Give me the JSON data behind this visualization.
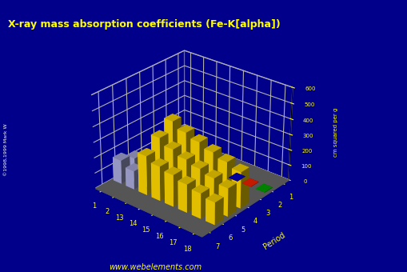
{
  "title": "X-ray mass absorption coefficients (Fe-K[alpha])",
  "background_color": "#00008B",
  "floor_color": "#606060",
  "title_color": "#FFFF00",
  "axis_color": "#FFFF00",
  "tick_color": "#FFFF00",
  "grid_color": "#FFFFFF",
  "zlim": [
    0,
    600
  ],
  "zticks": [
    0,
    100,
    200,
    300,
    400,
    500,
    600
  ],
  "groups": [
    1,
    2,
    13,
    14,
    15,
    16,
    17,
    18
  ],
  "periods": [
    1,
    2,
    3,
    4,
    5,
    6,
    7
  ],
  "watermark": "www.webelements.com",
  "copyright": "©1998,1999 Mark W",
  "elev": 28,
  "azim": -50,
  "bar_data": [
    {
      "g": 1,
      "p": 1,
      "v": 0.4,
      "c": "#FFB6C1"
    },
    {
      "g": 1,
      "p": 2,
      "v": 38.0,
      "c": "#AAAADD"
    },
    {
      "g": 1,
      "p": 3,
      "v": 57.0,
      "c": "#AAAADD"
    },
    {
      "g": 1,
      "p": 4,
      "v": 87.0,
      "c": "#AAAADD"
    },
    {
      "g": 1,
      "p": 5,
      "v": 120.0,
      "c": "#AAAADD"
    },
    {
      "g": 1,
      "p": 6,
      "v": 154.0,
      "c": "#AAAADD"
    },
    {
      "g": 2,
      "p": 3,
      "v": 14.0,
      "c": "#AAAADD"
    },
    {
      "g": 2,
      "p": 4,
      "v": 37.0,
      "c": "#AAAADD"
    },
    {
      "g": 2,
      "p": 5,
      "v": 70.0,
      "c": "#AAAADD"
    },
    {
      "g": 2,
      "p": 6,
      "v": 120.0,
      "c": "#AAAADD"
    },
    {
      "g": 13,
      "p": 2,
      "v": 74.0,
      "c": "#8B0000"
    },
    {
      "g": 13,
      "p": 3,
      "v": 48.5,
      "c": "#FFD700"
    },
    {
      "g": 13,
      "p": 4,
      "v": 385.0,
      "c": "#FFD700"
    },
    {
      "g": 13,
      "p": 5,
      "v": 324.0,
      "c": "#FFD700"
    },
    {
      "g": 13,
      "p": 6,
      "v": 254.0,
      "c": "#FFD700"
    },
    {
      "g": 14,
      "p": 2,
      "v": 66.0,
      "c": "#888888"
    },
    {
      "g": 14,
      "p": 3,
      "v": 60.6,
      "c": "#FFD700"
    },
    {
      "g": 14,
      "p": 4,
      "v": 346.0,
      "c": "#FFD700"
    },
    {
      "g": 14,
      "p": 5,
      "v": 285.0,
      "c": "#FFD700"
    },
    {
      "g": 14,
      "p": 6,
      "v": 223.0,
      "c": "#FFD700"
    },
    {
      "g": 15,
      "p": 2,
      "v": 55.0,
      "c": "#FF44FF"
    },
    {
      "g": 15,
      "p": 3,
      "v": 80.0,
      "c": "#660066"
    },
    {
      "g": 15,
      "p": 4,
      "v": 319.0,
      "c": "#FFD700"
    },
    {
      "g": 15,
      "p": 5,
      "v": 255.0,
      "c": "#FFD700"
    },
    {
      "g": 15,
      "p": 6,
      "v": 205.0,
      "c": "#FFD700"
    },
    {
      "g": 16,
      "p": 3,
      "v": 89.1,
      "c": "#FFD700"
    },
    {
      "g": 16,
      "p": 4,
      "v": 289.0,
      "c": "#FFD700"
    },
    {
      "g": 16,
      "p": 5,
      "v": 232.0,
      "c": "#FFD700"
    },
    {
      "g": 16,
      "p": 6,
      "v": 182.0,
      "c": "#FFD700"
    },
    {
      "g": 17,
      "p": 3,
      "v": 106.0,
      "c": "#FFD700"
    },
    {
      "g": 17,
      "p": 4,
      "v": 262.0,
      "c": "#FFD700"
    },
    {
      "g": 17,
      "p": 5,
      "v": 208.0,
      "c": "#FFD700"
    },
    {
      "g": 17,
      "p": 6,
      "v": 163.0,
      "c": "#FFD700"
    },
    {
      "g": 18,
      "p": 4,
      "v": 234.0,
      "c": "#FFD700"
    },
    {
      "g": 18,
      "p": 5,
      "v": 182.0,
      "c": "#FFD700"
    },
    {
      "g": 18,
      "p": 6,
      "v": 144.0,
      "c": "#FFD700"
    },
    {
      "g": 18,
      "p": 2,
      "v": 2.0,
      "c": "#00AA00"
    },
    {
      "g": 17,
      "p": 2,
      "v": 2.0,
      "c": "#FF2200"
    },
    {
      "g": 16,
      "p": 2,
      "v": 2.0,
      "c": "#0000CC"
    }
  ]
}
